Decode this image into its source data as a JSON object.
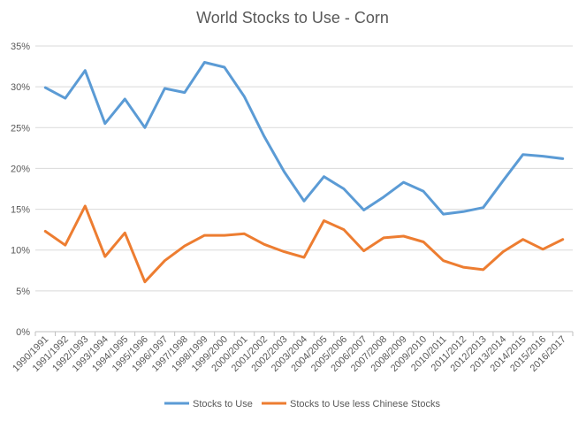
{
  "chart_data": {
    "type": "line",
    "title": "World Stocks to Use - Corn",
    "xlabel": "",
    "ylabel": "",
    "categories": [
      "1990/1991",
      "1991/1992",
      "1992/1993",
      "1993/1994",
      "1994/1995",
      "1995/1996",
      "1996/1997",
      "1997/1998",
      "1998/1999",
      "1999/2000",
      "2000/2001",
      "2001/2002",
      "2002/2003",
      "2003/2004",
      "2004/2005",
      "2005/2006",
      "2006/2007",
      "2007/2008",
      "2008/2009",
      "2009/2010",
      "2010/2011",
      "2011/2012",
      "2012/2013",
      "2013/2014",
      "2014/2015",
      "2015/2016",
      "2016/2017"
    ],
    "y_ticks": [
      "0%",
      "5%",
      "10%",
      "15%",
      "20%",
      "25%",
      "30%",
      "35%"
    ],
    "ylim": [
      0,
      35
    ],
    "grid": true,
    "legend_position": "bottom",
    "series": [
      {
        "name": "Stocks to Use",
        "color": "#5B9BD5",
        "values": [
          29.9,
          28.6,
          32.0,
          25.5,
          28.5,
          25.0,
          29.8,
          29.3,
          33.0,
          32.4,
          28.8,
          23.9,
          19.6,
          16.0,
          19.0,
          17.5,
          14.9,
          16.5,
          18.3,
          17.2,
          14.4,
          14.7,
          15.2,
          18.5,
          21.7,
          21.5,
          21.2
        ]
      },
      {
        "name": "Stocks to Use less Chinese Stocks",
        "color": "#ED7D31",
        "values": [
          12.3,
          10.6,
          15.4,
          9.2,
          12.1,
          6.1,
          8.7,
          10.5,
          11.8,
          11.8,
          12.0,
          10.7,
          9.8,
          9.1,
          13.6,
          12.5,
          9.9,
          11.5,
          11.7,
          11.0,
          8.7,
          7.9,
          7.6,
          9.8,
          11.3,
          10.1,
          11.3
        ]
      }
    ]
  }
}
